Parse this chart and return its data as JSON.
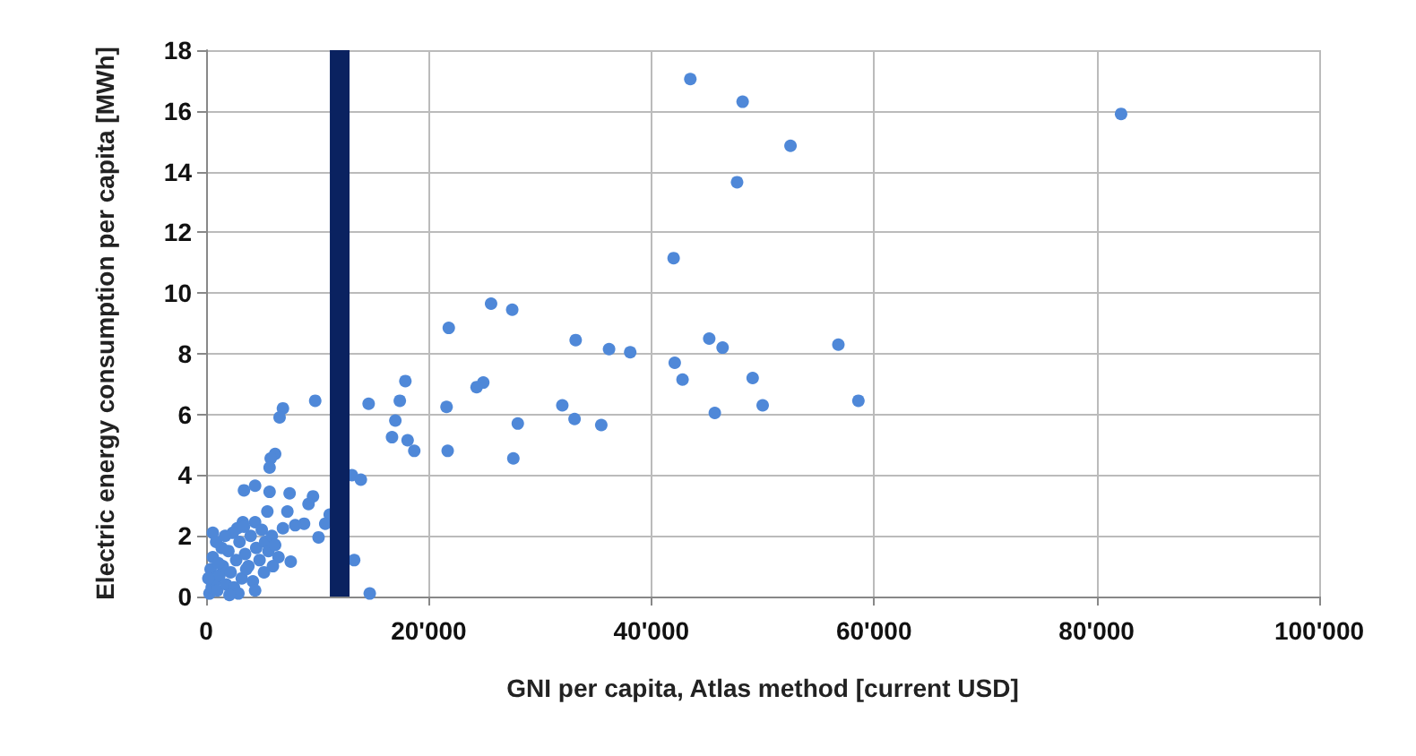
{
  "chart_data": {
    "type": "scatter",
    "xlabel": "GNI per capita, Atlas method [current USD]",
    "ylabel": "Electric energy consumption per capita [MWh]",
    "xlim": [
      0,
      100000
    ],
    "ylim": [
      0,
      18
    ],
    "xticks": [
      0,
      {
        "value": 20000,
        "label": "20'000"
      },
      {
        "value": 40000,
        "label": "40'000"
      },
      {
        "value": 60000,
        "label": "60'000"
      },
      {
        "value": 80000,
        "label": "80'000"
      },
      {
        "value": 100000,
        "label": "100'000"
      }
    ],
    "yticks": [
      0,
      2,
      4,
      6,
      8,
      10,
      12,
      14,
      16,
      18
    ],
    "grid": true,
    "marker": "circle",
    "ref_lines": [
      {
        "axis": "x",
        "value": 12000,
        "color": "#0a2260"
      }
    ],
    "series": [
      {
        "color": "#4f88d8",
        "x": [
          43500,
          48200,
          52500,
          47700,
          42000,
          45200,
          46400,
          56800,
          42100,
          42800,
          49100,
          50000,
          45700,
          58600,
          82200,
          25600,
          27500,
          21800,
          33200,
          36200,
          38100,
          17900,
          24900,
          24300,
          14600,
          17400,
          21600,
          32000,
          33100,
          35500,
          28000,
          17000,
          16700,
          18100,
          18700,
          21700,
          27600,
          13100,
          13900,
          13300,
          14700,
          9800,
          6900,
          6600,
          6200,
          5800,
          5700,
          4400,
          3400,
          5700,
          7500,
          9600,
          9200,
          5500,
          7300,
          11100,
          8800,
          8000,
          10700,
          6900,
          3300,
          2800,
          4400,
          10100,
          600,
          7600,
          300,
          500,
          800,
          400,
          600,
          1000,
          1200,
          1500,
          1800,
          2000,
          2200,
          2500,
          2700,
          3000,
          3200,
          3500,
          3800,
          4000,
          4200,
          4500,
          4800,
          5000,
          5300,
          5600,
          5900,
          6200,
          6500,
          1400,
          2400,
          3400,
          900,
          1700,
          2900,
          3600,
          4400,
          1100,
          200,
          2100,
          6000,
          5200
        ],
        "values": [
          17.05,
          16.3,
          14.85,
          13.65,
          11.15,
          8.5,
          8.2,
          8.3,
          7.7,
          7.15,
          7.2,
          6.3,
          6.05,
          6.45,
          15.9,
          9.65,
          9.45,
          8.85,
          8.45,
          8.15,
          8.05,
          7.1,
          7.05,
          6.9,
          6.35,
          6.45,
          6.25,
          6.3,
          5.85,
          5.65,
          5.7,
          5.8,
          5.25,
          5.15,
          4.8,
          4.8,
          4.55,
          4.0,
          3.85,
          1.2,
          0.1,
          6.45,
          6.2,
          5.9,
          4.7,
          4.55,
          4.25,
          3.65,
          3.5,
          3.45,
          3.4,
          3.3,
          3.05,
          2.8,
          2.8,
          2.7,
          2.4,
          2.35,
          2.4,
          2.25,
          2.45,
          2.25,
          2.45,
          1.95,
          2.1,
          1.15,
          0.1,
          0.3,
          0.5,
          0.9,
          1.3,
          0.2,
          0.7,
          1.0,
          0.4,
          1.5,
          0.8,
          0.3,
          1.2,
          1.8,
          0.6,
          1.4,
          1.0,
          2.0,
          0.5,
          1.6,
          1.2,
          2.2,
          1.8,
          1.5,
          2.0,
          1.7,
          1.3,
          1.6,
          2.1,
          2.3,
          1.8,
          2.0,
          0.1,
          0.9,
          0.2,
          1.1,
          0.6,
          0.05,
          1.0,
          0.8
        ]
      }
    ]
  }
}
